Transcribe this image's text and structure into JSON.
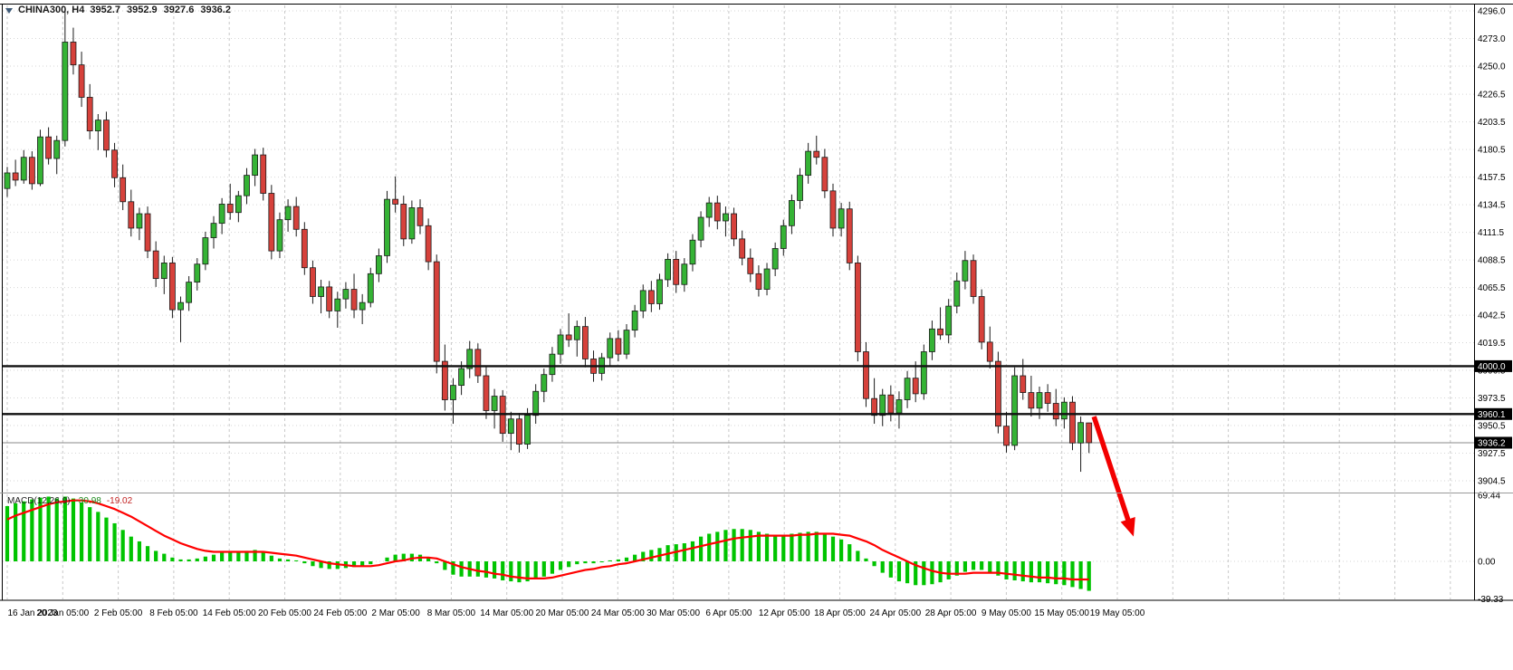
{
  "header": {
    "title": "CHINA300, H4",
    "open": "3952.7",
    "high": "3952.9",
    "low": "3927.6",
    "close": "3936.2"
  },
  "indicator_label": {
    "name": "MACD(12,26,9)",
    "macd_value": "-30.98",
    "signal_value": "-19.02"
  },
  "colors": {
    "background": "#ffffff",
    "bull": "#35b335",
    "bear": "#d6413b",
    "outline": "#1a1a1a",
    "macd_histogram": "#00c400",
    "macd_signal": "#ff0000",
    "grid": "#c9c9c9",
    "annotation_arrow": "#f20000",
    "axis_tag_bg": "#000000",
    "axis_tag_text": "#ffffff",
    "user_line": "#111111",
    "current_price_line": "#888888"
  },
  "chart_data": {
    "type": "candlestick",
    "symbol": "CHINA300",
    "timeframe": "H4",
    "legend_position": "top-left",
    "grid": true,
    "price_axis": {
      "ylim": [
        3898,
        4301
      ],
      "labels": [
        4296.0,
        4273.0,
        4250.0,
        4226.5,
        4203.5,
        4180.5,
        4157.5,
        4134.5,
        4111.5,
        4088.5,
        4065.5,
        4042.5,
        4019.5,
        3996.5,
        3973.5,
        3950.5,
        3927.5,
        3904.5
      ]
    },
    "price_lines": [
      {
        "price": 4000.0,
        "label": "4000.0"
      },
      {
        "price": 3960.1,
        "label": "3960.1"
      }
    ],
    "current_price": {
      "price": 3936.2,
      "label": "3936.2"
    },
    "x_axis": {
      "labels": [
        "16 Jan 2023",
        "20 Jan 05:00",
        "2 Feb 05:00",
        "8 Feb 05:00",
        "14 Feb 05:00",
        "20 Feb 05:00",
        "24 Feb 05:00",
        "2 Mar 05:00",
        "8 Mar 05:00",
        "14 Mar 05:00",
        "20 Mar 05:00",
        "24 Mar 05:00",
        "30 Mar 05:00",
        "6 Apr 05:00",
        "12 Apr 05:00",
        "18 Apr 05:00",
        "24 Apr 05:00",
        "28 Apr 05:00",
        "9 May 05:00",
        "15 May 05:00",
        "19 May 05:00"
      ]
    },
    "candles": [
      [
        4148,
        4166,
        4141,
        4161
      ],
      [
        4161,
        4172,
        4150,
        4155
      ],
      [
        4155,
        4180,
        4152,
        4174
      ],
      [
        4174,
        4179,
        4147,
        4152
      ],
      [
        4152,
        4197,
        4150,
        4191
      ],
      [
        4191,
        4199,
        4168,
        4173
      ],
      [
        4173,
        4192,
        4160,
        4188
      ],
      [
        4188,
        4296,
        4183,
        4270
      ],
      [
        4270,
        4282,
        4243,
        4251
      ],
      [
        4251,
        4262,
        4216,
        4224
      ],
      [
        4224,
        4235,
        4189,
        4196
      ],
      [
        4196,
        4210,
        4180,
        4205
      ],
      [
        4205,
        4212,
        4174,
        4180
      ],
      [
        4180,
        4186,
        4149,
        4157
      ],
      [
        4157,
        4168,
        4130,
        4137
      ],
      [
        4137,
        4147,
        4108,
        4115
      ],
      [
        4115,
        4132,
        4105,
        4127
      ],
      [
        4127,
        4133,
        4090,
        4096
      ],
      [
        4096,
        4104,
        4066,
        4073
      ],
      [
        4073,
        4092,
        4060,
        4086
      ],
      [
        4086,
        4091,
        4040,
        4047
      ],
      [
        4047,
        4058,
        4020,
        4053
      ],
      [
        4053,
        4075,
        4046,
        4070
      ],
      [
        4070,
        4090,
        4063,
        4085
      ],
      [
        4085,
        4112,
        4080,
        4107
      ],
      [
        4107,
        4125,
        4098,
        4119
      ],
      [
        4119,
        4140,
        4110,
        4135
      ],
      [
        4135,
        4152,
        4122,
        4128
      ],
      [
        4128,
        4146,
        4120,
        4142
      ],
      [
        4142,
        4165,
        4135,
        4159
      ],
      [
        4159,
        4181,
        4150,
        4176
      ],
      [
        4176,
        4182,
        4138,
        4144
      ],
      [
        4144,
        4151,
        4089,
        4096
      ],
      [
        4096,
        4128,
        4090,
        4122
      ],
      [
        4122,
        4139,
        4112,
        4133
      ],
      [
        4133,
        4141,
        4108,
        4114
      ],
      [
        4114,
        4120,
        4076,
        4082
      ],
      [
        4082,
        4088,
        4052,
        4058
      ],
      [
        4058,
        4072,
        4044,
        4066
      ],
      [
        4066,
        4071,
        4040,
        4046
      ],
      [
        4046,
        4062,
        4032,
        4056
      ],
      [
        4056,
        4070,
        4048,
        4064
      ],
      [
        4064,
        4077,
        4040,
        4047
      ],
      [
        4047,
        4060,
        4035,
        4053
      ],
      [
        4053,
        4082,
        4049,
        4077
      ],
      [
        4077,
        4098,
        4070,
        4092
      ],
      [
        4092,
        4146,
        4086,
        4139
      ],
      [
        4139,
        4158,
        4128,
        4135
      ],
      [
        4135,
        4142,
        4100,
        4106
      ],
      [
        4106,
        4138,
        4102,
        4132
      ],
      [
        4132,
        4139,
        4110,
        4117
      ],
      [
        4117,
        4123,
        4080,
        4087
      ],
      [
        4087,
        4093,
        3994,
        4004
      ],
      [
        4004,
        4018,
        3963,
        3972
      ],
      [
        3972,
        3990,
        3952,
        3984
      ],
      [
        3984,
        4004,
        3976,
        3998
      ],
      [
        3998,
        4021,
        3990,
        4014
      ],
      [
        4014,
        4019,
        3986,
        3992
      ],
      [
        3992,
        4000,
        3956,
        3963
      ],
      [
        3963,
        3981,
        3948,
        3975
      ],
      [
        3975,
        3980,
        3937,
        3944
      ],
      [
        3944,
        3962,
        3930,
        3956
      ],
      [
        3956,
        3961,
        3928,
        3935
      ],
      [
        3935,
        3965,
        3931,
        3959
      ],
      [
        3959,
        3985,
        3952,
        3979
      ],
      [
        3979,
        3998,
        3970,
        3993
      ],
      [
        3993,
        4016,
        3987,
        4010
      ],
      [
        4010,
        4031,
        4002,
        4026
      ],
      [
        4026,
        4044,
        4016,
        4022
      ],
      [
        4022,
        4038,
        4008,
        4033
      ],
      [
        4033,
        4041,
        3999,
        4006
      ],
      [
        4006,
        4013,
        3987,
        3994
      ],
      [
        3994,
        4011,
        3988,
        4007
      ],
      [
        4007,
        4028,
        4000,
        4023
      ],
      [
        4023,
        4030,
        4004,
        4010
      ],
      [
        4010,
        4035,
        4006,
        4030
      ],
      [
        4030,
        4051,
        4024,
        4046
      ],
      [
        4046,
        4068,
        4040,
        4063
      ],
      [
        4063,
        4071,
        4045,
        4052
      ],
      [
        4052,
        4077,
        4047,
        4072
      ],
      [
        4072,
        4094,
        4066,
        4089
      ],
      [
        4089,
        4096,
        4061,
        4068
      ],
      [
        4068,
        4090,
        4062,
        4085
      ],
      [
        4085,
        4110,
        4079,
        4105
      ],
      [
        4105,
        4129,
        4099,
        4124
      ],
      [
        4124,
        4141,
        4116,
        4136
      ],
      [
        4136,
        4142,
        4114,
        4121
      ],
      [
        4121,
        4133,
        4108,
        4127
      ],
      [
        4127,
        4132,
        4100,
        4106
      ],
      [
        4106,
        4113,
        4084,
        4090
      ],
      [
        4090,
        4098,
        4070,
        4077
      ],
      [
        4077,
        4084,
        4058,
        4064
      ],
      [
        4064,
        4086,
        4059,
        4081
      ],
      [
        4081,
        4103,
        4075,
        4098
      ],
      [
        4098,
        4122,
        4092,
        4117
      ],
      [
        4117,
        4143,
        4110,
        4138
      ],
      [
        4138,
        4165,
        4131,
        4159
      ],
      [
        4159,
        4186,
        4152,
        4179
      ],
      [
        4179,
        4192,
        4168,
        4174
      ],
      [
        4174,
        4181,
        4140,
        4146
      ],
      [
        4146,
        4152,
        4108,
        4115
      ],
      [
        4115,
        4136,
        4108,
        4131
      ],
      [
        4131,
        4137,
        4080,
        4086
      ],
      [
        4086,
        4092,
        4004,
        4012
      ],
      [
        4012,
        4020,
        3966,
        3973
      ],
      [
        3973,
        3990,
        3952,
        3959
      ],
      [
        3959,
        3981,
        3950,
        3976
      ],
      [
        3976,
        3984,
        3954,
        3961
      ],
      [
        3961,
        3979,
        3948,
        3972
      ],
      [
        3972,
        3996,
        3965,
        3990
      ],
      [
        3990,
        4004,
        3970,
        3977
      ],
      [
        3977,
        4018,
        3972,
        4012
      ],
      [
        4012,
        4038,
        4005,
        4031
      ],
      [
        4031,
        4049,
        4022,
        4026
      ],
      [
        4026,
        4056,
        4019,
        4050
      ],
      [
        4050,
        4078,
        4044,
        4071
      ],
      [
        4071,
        4096,
        4064,
        4088
      ],
      [
        4088,
        4093,
        4052,
        4058
      ],
      [
        4058,
        4064,
        4014,
        4020
      ],
      [
        4020,
        4033,
        3998,
        4004
      ],
      [
        4004,
        4012,
        3944,
        3950
      ],
      [
        3950,
        3962,
        3928,
        3934
      ],
      [
        3934,
        3999,
        3930,
        3992
      ],
      [
        3992,
        4006,
        3972,
        3978
      ],
      [
        3978,
        3992,
        3958,
        3965
      ],
      [
        3965,
        3983,
        3956,
        3978
      ],
      [
        3978,
        3985,
        3962,
        3969
      ],
      [
        3969,
        3981,
        3950,
        3956
      ],
      [
        3956,
        3974,
        3948,
        3970
      ],
      [
        3970,
        3975,
        3930,
        3936
      ],
      [
        3936,
        3958,
        3912,
        3953
      ],
      [
        3952.7,
        3952.9,
        3927.6,
        3936.2
      ]
    ],
    "macd": {
      "params": "12,26,9",
      "axis_labels": [
        "69.44",
        "0.00",
        "-39.33"
      ],
      "ylim": [
        -39.33,
        69.44
      ],
      "histogram": [
        58,
        61,
        63,
        65,
        67,
        68,
        66,
        68,
        66,
        62,
        57,
        52,
        46,
        40,
        33,
        26,
        21,
        16,
        11,
        8,
        4,
        2,
        2,
        3,
        5,
        7,
        9,
        10,
        10,
        11,
        12,
        10,
        6,
        3,
        2,
        1,
        -2,
        -5,
        -7,
        -8,
        -8,
        -7,
        -6,
        -5,
        -3,
        0,
        4,
        7,
        8,
        8,
        7,
        4,
        -2,
        -9,
        -14,
        -16,
        -16,
        -16,
        -17,
        -18,
        -20,
        -21,
        -22,
        -21,
        -19,
        -16,
        -13,
        -9,
        -6,
        -3,
        -2,
        -2,
        -1,
        1,
        2,
        4,
        7,
        10,
        12,
        14,
        17,
        18,
        19,
        21,
        26,
        29,
        31,
        33,
        34,
        34,
        33,
        31,
        29,
        28,
        28,
        29,
        30,
        31,
        31,
        29,
        26,
        23,
        18,
        11,
        3,
        -5,
        -12,
        -17,
        -21,
        -23,
        -25,
        -25,
        -24,
        -22,
        -19,
        -15,
        -11,
        -9,
        -9,
        -11,
        -15,
        -19,
        -20,
        -21,
        -22,
        -22,
        -23,
        -24,
        -25,
        -27,
        -29,
        -30.98
      ],
      "signal": [
        44,
        48,
        51,
        54,
        57,
        60,
        62,
        63,
        64,
        64,
        63,
        61,
        58,
        55,
        51,
        47,
        42,
        37,
        32,
        27,
        23,
        19,
        16,
        13,
        11,
        10,
        10,
        10,
        10,
        10,
        10,
        10,
        9,
        8,
        7,
        6,
        4,
        2,
        0,
        -2,
        -3,
        -4,
        -5,
        -5,
        -5,
        -4,
        -2,
        0,
        1,
        3,
        4,
        4,
        3,
        0,
        -3,
        -6,
        -8,
        -10,
        -11,
        -13,
        -14,
        -16,
        -17,
        -18,
        -18,
        -18,
        -17,
        -15,
        -13,
        -11,
        -9,
        -8,
        -6,
        -5,
        -3,
        -2,
        0,
        2,
        4,
        6,
        8,
        10,
        12,
        14,
        16,
        18,
        20,
        22,
        24,
        25,
        26,
        27,
        27,
        27,
        27,
        27,
        28,
        28,
        29,
        29,
        29,
        28,
        27,
        24,
        21,
        17,
        12,
        8,
        4,
        0,
        -4,
        -7,
        -10,
        -12,
        -13,
        -13,
        -13,
        -12,
        -12,
        -12,
        -12,
        -13,
        -14,
        -15,
        -16,
        -17,
        -17,
        -18,
        -18,
        -19,
        -19,
        -19.02
      ]
    },
    "annotation_arrow": {
      "from_bar": 131.6,
      "from_price": 3958,
      "to_bar": 136.4,
      "to_price": 3858,
      "color": "#f20000"
    }
  }
}
